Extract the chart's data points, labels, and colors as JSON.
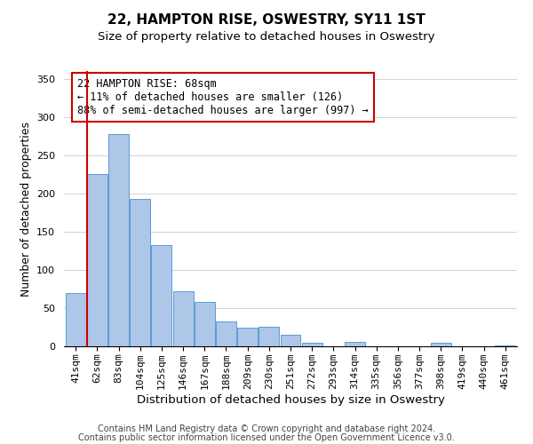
{
  "title": "22, HAMPTON RISE, OSWESTRY, SY11 1ST",
  "subtitle": "Size of property relative to detached houses in Oswestry",
  "xlabel": "Distribution of detached houses by size in Oswestry",
  "ylabel": "Number of detached properties",
  "bar_labels": [
    "41sqm",
    "62sqm",
    "83sqm",
    "104sqm",
    "125sqm",
    "146sqm",
    "167sqm",
    "188sqm",
    "209sqm",
    "230sqm",
    "251sqm",
    "272sqm",
    "293sqm",
    "314sqm",
    "335sqm",
    "356sqm",
    "377sqm",
    "398sqm",
    "419sqm",
    "440sqm",
    "461sqm"
  ],
  "bar_values": [
    70,
    225,
    278,
    193,
    132,
    72,
    58,
    33,
    24,
    25,
    15,
    5,
    0,
    6,
    0,
    0,
    0,
    5,
    0,
    0,
    1
  ],
  "bar_color": "#aec6e8",
  "bar_edge_color": "#5b9bd5",
  "vline_color": "#cc0000",
  "annotation_text": "22 HAMPTON RISE: 68sqm\n← 11% of detached houses are smaller (126)\n88% of semi-detached houses are larger (997) →",
  "annotation_box_color": "#ffffff",
  "annotation_box_edge_color": "#cc0000",
  "ylim": [
    0,
    360
  ],
  "yticks": [
    0,
    50,
    100,
    150,
    200,
    250,
    300,
    350
  ],
  "footer_line1": "Contains HM Land Registry data © Crown copyright and database right 2024.",
  "footer_line2": "Contains public sector information licensed under the Open Government Licence v3.0.",
  "title_fontsize": 11,
  "subtitle_fontsize": 9.5,
  "xlabel_fontsize": 9.5,
  "ylabel_fontsize": 9,
  "tick_fontsize": 8,
  "footer_fontsize": 7,
  "annot_fontsize": 8.5
}
